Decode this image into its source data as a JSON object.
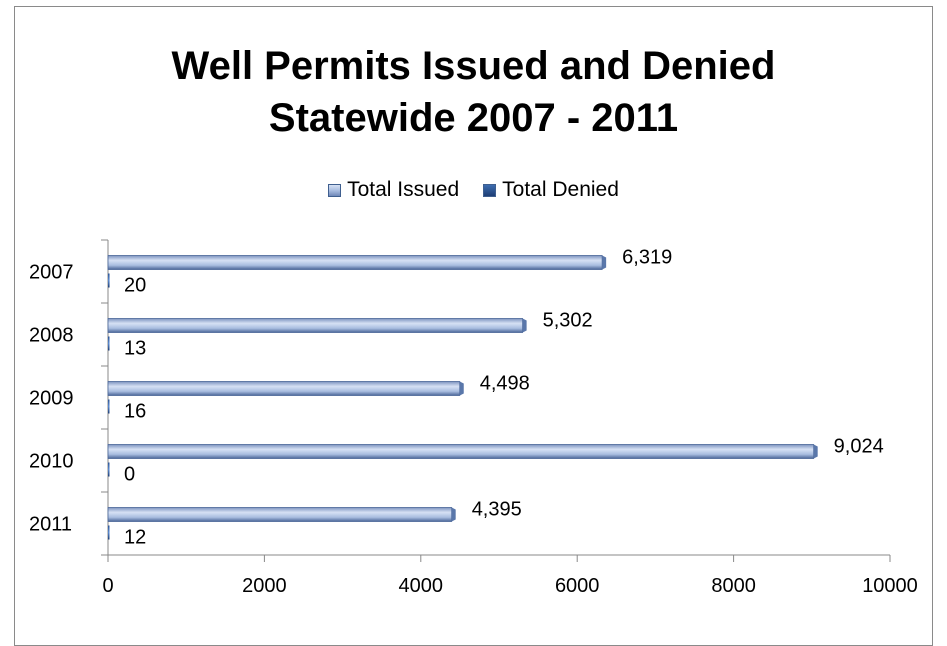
{
  "chart_data": {
    "type": "bar",
    "orientation": "horizontal",
    "title_lines": [
      "Well Permits Issued and Denied",
      "Statewide 2007 - 2011"
    ],
    "categories": [
      "2007",
      "2008",
      "2009",
      "2010",
      "2011"
    ],
    "series": [
      {
        "name": "Total Issued",
        "values": [
          6319,
          5302,
          4498,
          9024,
          4395
        ],
        "labels": [
          "6,319",
          "5,302",
          "4,498",
          "9,024",
          "4,395"
        ],
        "color": "#a9bde0"
      },
      {
        "name": "Total Denied",
        "values": [
          20,
          13,
          16,
          0,
          12
        ],
        "labels": [
          "20",
          "13",
          "16",
          "0",
          "12"
        ],
        "color": "#3d6db0"
      }
    ],
    "xlim": [
      0,
      10000
    ],
    "xticks": [
      "0",
      "2000",
      "4000",
      "6000",
      "8000",
      "10000"
    ],
    "legend_position": "top",
    "grid": false
  }
}
